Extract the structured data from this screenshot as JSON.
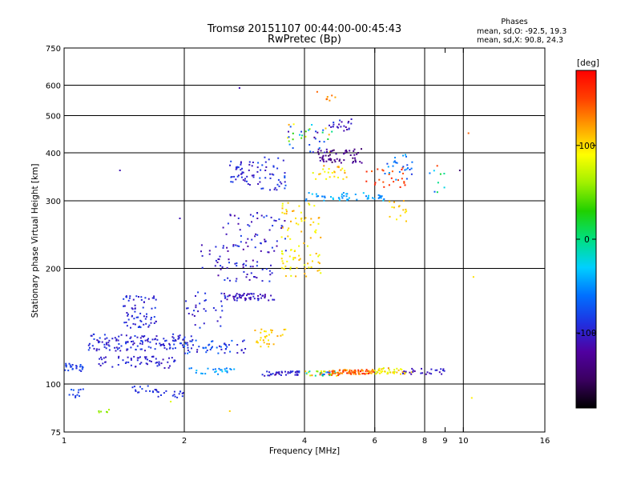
{
  "chart_data": {
    "type": "scatter",
    "title_line1": "Tromsø 20151107 00:44:00-00:45:43",
    "title_line2": "RwPretec (Bp)",
    "phases": {
      "title": "Phases",
      "line_o": "mean, sd,O: -92.5, 19.3",
      "line_x": "mean, sd,X:  90.8, 24.3"
    },
    "xlabel": "Frequency [MHz]",
    "ylabel": "Stationary phase Virtual Height [km]",
    "x_scale": "log",
    "y_scale": "log",
    "xlim": [
      1,
      16
    ],
    "ylim": [
      75,
      750
    ],
    "x_ticks": [
      {
        "v": 1,
        "label": "1"
      },
      {
        "v": 2,
        "label": "2"
      },
      {
        "v": 4,
        "label": "4"
      },
      {
        "v": 6,
        "label": "6"
      },
      {
        "v": 8,
        "label": "8"
      },
      {
        "v": 9,
        "label": "9"
      },
      {
        "v": 10,
        "label": "10"
      },
      {
        "v": 16,
        "label": "16"
      }
    ],
    "x_grid": [
      2,
      4,
      6,
      8,
      10
    ],
    "y_ticks": [
      {
        "v": 75,
        "label": "75"
      },
      {
        "v": 100,
        "label": "100"
      },
      {
        "v": 200,
        "label": "200"
      },
      {
        "v": 300,
        "label": "300"
      },
      {
        "v": 400,
        "label": "400"
      },
      {
        "v": 500,
        "label": "500"
      },
      {
        "v": 600,
        "label": "600"
      },
      {
        "v": 750,
        "label": "750"
      }
    ],
    "y_grid": [
      100,
      200,
      300,
      400,
      500,
      600
    ],
    "grid": true,
    "colorbar": {
      "label": "[deg]",
      "range": [
        -180,
        180
      ],
      "ticks": [
        {
          "v": 100,
          "label": "100"
        },
        {
          "v": 0,
          "label": "0"
        },
        {
          "v": -100,
          "label": "-100"
        }
      ],
      "colors": [
        "#000000",
        "#3a0060",
        "#5000a0",
        "#2030e0",
        "#0070ff",
        "#00d0ff",
        "#00e080",
        "#20d000",
        "#a0f000",
        "#ffff00",
        "#ffa000",
        "#ff4000",
        "#ff0000"
      ]
    },
    "clusters": [
      {
        "f": [
          1.0,
          1.12
        ],
        "h": [
          108,
          113
        ],
        "ph": [
          -95,
          -75
        ],
        "n": 25
      },
      {
        "f": [
          1.02,
          1.12
        ],
        "h": [
          92,
          97
        ],
        "ph": [
          -95,
          -70
        ],
        "n": 12
      },
      {
        "f": [
          1.2,
          1.32
        ],
        "h": [
          84,
          86
        ],
        "ph": [
          45,
          70
        ],
        "n": 6
      },
      {
        "f": [
          1.15,
          2.1
        ],
        "h": [
          122,
          135
        ],
        "ph": [
          -110,
          -80
        ],
        "n": 140
      },
      {
        "f": [
          1.2,
          1.9
        ],
        "h": [
          110,
          118
        ],
        "ph": [
          -110,
          -90
        ],
        "n": 60
      },
      {
        "f": [
          1.4,
          1.7
        ],
        "h": [
          140,
          170
        ],
        "ph": [
          -110,
          -80
        ],
        "n": 70
      },
      {
        "f": [
          1.45,
          1.75
        ],
        "h": [
          95,
          100
        ],
        "ph": [
          -100,
          -80
        ],
        "n": 18
      },
      {
        "f": [
          1.7,
          2.0
        ],
        "h": [
          92,
          96
        ],
        "ph": [
          -100,
          -85
        ],
        "n": 15
      },
      {
        "f": [
          2.0,
          2.9
        ],
        "h": [
          120,
          130
        ],
        "ph": [
          -110,
          -60
        ],
        "n": 50
      },
      {
        "f": [
          2.0,
          2.7
        ],
        "h": [
          106,
          110
        ],
        "ph": [
          -60,
          -30
        ],
        "n": 25
      },
      {
        "f": [
          2.0,
          2.5
        ],
        "h": [
          140,
          175
        ],
        "ph": [
          -110,
          -80
        ],
        "n": 30
      },
      {
        "f": [
          2.2,
          2.6
        ],
        "h": [
          200,
          230
        ],
        "ph": [
          -120,
          -90
        ],
        "n": 18
      },
      {
        "f": [
          2.5,
          3.4
        ],
        "h": [
          165,
          172
        ],
        "ph": [
          -120,
          -90
        ],
        "n": 60
      },
      {
        "f": [
          2.4,
          3.4
        ],
        "h": [
          185,
          210
        ],
        "ph": [
          -120,
          -80
        ],
        "n": 40
      },
      {
        "f": [
          2.5,
          3.6
        ],
        "h": [
          220,
          280
        ],
        "ph": [
          -120,
          -80
        ],
        "n": 60
      },
      {
        "f": [
          2.6,
          3.0
        ],
        "h": [
          330,
          380
        ],
        "ph": [
          -110,
          -80
        ],
        "n": 40
      },
      {
        "f": [
          3.0,
          3.6
        ],
        "h": [
          320,
          390
        ],
        "ph": [
          -110,
          -70
        ],
        "n": 40
      },
      {
        "f": [
          3.0,
          3.6
        ],
        "h": [
          125,
          140
        ],
        "ph": [
          90,
          120
        ],
        "n": 30
      },
      {
        "f": [
          3.1,
          3.9
        ],
        "h": [
          105,
          108
        ],
        "ph": [
          -120,
          -80
        ],
        "n": 40
      },
      {
        "f": [
          3.5,
          4.4
        ],
        "h": [
          190,
          300
        ],
        "ph": [
          80,
          120
        ],
        "n": 90
      },
      {
        "f": [
          4.0,
          4.9
        ],
        "h": [
          105,
          108
        ],
        "ph": [
          -110,
          150
        ],
        "n": 40
      },
      {
        "f": [
          4.6,
          6.0
        ],
        "h": [
          106,
          109
        ],
        "ph": [
          110,
          170
        ],
        "n": 80
      },
      {
        "f": [
          6.0,
          7.6
        ],
        "h": [
          106,
          110
        ],
        "ph": [
          70,
          130
        ],
        "n": 40
      },
      {
        "f": [
          7.0,
          9.2
        ],
        "h": [
          106,
          110
        ],
        "ph": [
          -120,
          -90
        ],
        "n": 25
      },
      {
        "f": [
          3.6,
          4.7
        ],
        "h": [
          400,
          480
        ],
        "ph": [
          -130,
          130
        ],
        "n": 40
      },
      {
        "f": [
          4.3,
          5.6
        ],
        "h": [
          375,
          410
        ],
        "ph": [
          -150,
          -110
        ],
        "n": 60
      },
      {
        "f": [
          4.7,
          5.3
        ],
        "h": [
          450,
          490
        ],
        "ph": [
          -120,
          -80
        ],
        "n": 20
      },
      {
        "f": [
          4.0,
          6.4
        ],
        "h": [
          300,
          315
        ],
        "ph": [
          -60,
          -30
        ],
        "n": 50
      },
      {
        "f": [
          4.2,
          5.2
        ],
        "h": [
          340,
          370
        ],
        "ph": [
          80,
          130
        ],
        "n": 25
      },
      {
        "f": [
          5.7,
          7.2
        ],
        "h": [
          320,
          370
        ],
        "ph": [
          140,
          170
        ],
        "n": 25
      },
      {
        "f": [
          6.3,
          7.5
        ],
        "h": [
          340,
          400
        ],
        "ph": [
          -90,
          -30
        ],
        "n": 25
      },
      {
        "f": [
          4.3,
          4.8
        ],
        "h": [
          530,
          580
        ],
        "ph": [
          110,
          150
        ],
        "n": 8
      },
      {
        "f": [
          6.5,
          7.2
        ],
        "h": [
          260,
          300
        ],
        "ph": [
          90,
          120
        ],
        "n": 15
      },
      {
        "f": [
          8.2,
          9.0
        ],
        "h": [
          315,
          360
        ],
        "ph": [
          -70,
          20
        ],
        "n": 8
      }
    ],
    "scattered_points": [
      {
        "f": 1.38,
        "h": 360,
        "ph": -110
      },
      {
        "f": 2.75,
        "h": 590,
        "ph": -110
      },
      {
        "f": 10.3,
        "h": 450,
        "ph": 140
      },
      {
        "f": 10.6,
        "h": 190,
        "ph": 100
      },
      {
        "f": 10.5,
        "h": 92,
        "ph": 95
      },
      {
        "f": 9.8,
        "h": 360,
        "ph": -140
      },
      {
        "f": 8.6,
        "h": 370,
        "ph": 150
      },
      {
        "f": 1.95,
        "h": 270,
        "ph": -110
      },
      {
        "f": 2.6,
        "h": 85,
        "ph": 105
      },
      {
        "f": 1.85,
        "h": 90,
        "ph": 80
      }
    ]
  }
}
